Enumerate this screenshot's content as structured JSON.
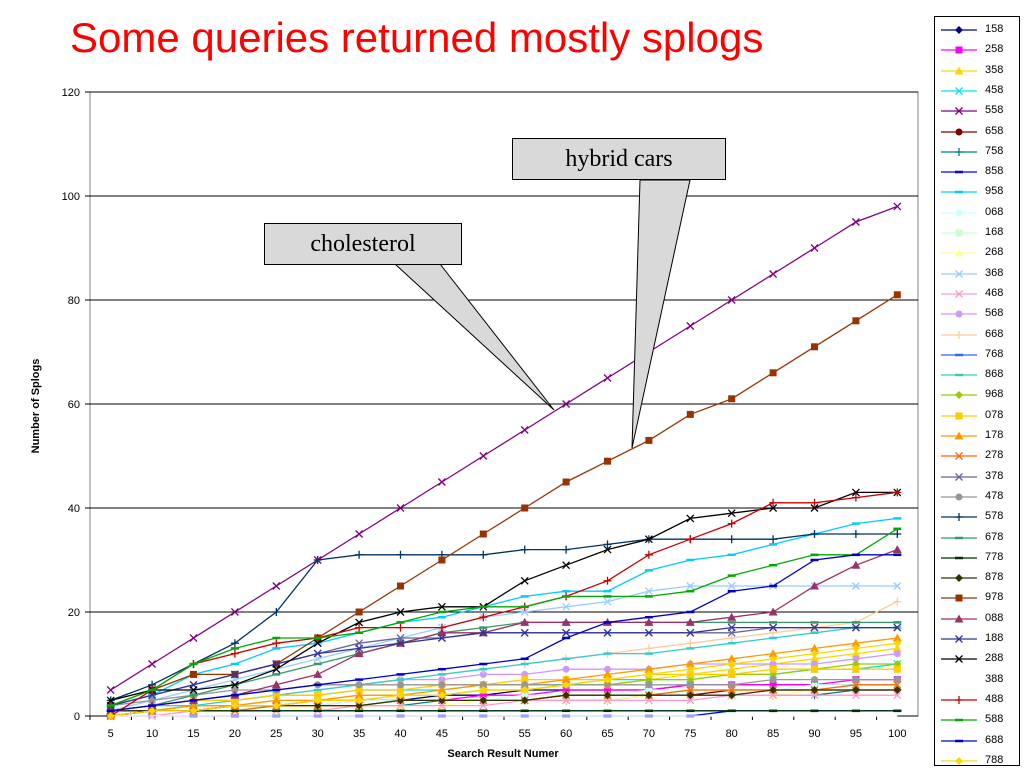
{
  "slide": {
    "title": "Some queries returned mostly splogs"
  },
  "callouts": {
    "cholesterol": "cholesterol",
    "hybrid": "hybrid cars"
  },
  "chart_data": {
    "type": "line",
    "title": "",
    "xlabel": "Search Result Numer",
    "ylabel": "Number of Splogs",
    "x": [
      5,
      10,
      15,
      20,
      25,
      30,
      35,
      40,
      45,
      50,
      55,
      60,
      65,
      70,
      75,
      80,
      85,
      90,
      95,
      100
    ],
    "xlim": [
      5,
      100
    ],
    "ylim": [
      0,
      120
    ],
    "yticks": [
      0,
      20,
      40,
      60,
      80,
      100,
      120
    ],
    "grid": "horizontal",
    "legend_position": "right",
    "series": [
      {
        "name": "158",
        "color": "#000080",
        "marker": "diamond",
        "values": [
          1,
          1,
          2,
          2,
          2,
          3,
          3,
          3,
          4,
          4,
          5,
          5,
          5,
          5,
          6,
          6,
          6,
          6,
          6,
          6
        ]
      },
      {
        "name": "258",
        "color": "#ff00ff",
        "marker": "square",
        "values": [
          0,
          1,
          1,
          2,
          2,
          2,
          3,
          3,
          3,
          4,
          4,
          5,
          5,
          5,
          6,
          6,
          6,
          6,
          7,
          7
        ]
      },
      {
        "name": "358",
        "color": "#ffd700",
        "marker": "triangle",
        "values": [
          1,
          1,
          2,
          2,
          3,
          3,
          4,
          4,
          4,
          5,
          5,
          6,
          6,
          7,
          8,
          9,
          10,
          11,
          12,
          13
        ]
      },
      {
        "name": "458",
        "color": "#00e5ee",
        "marker": "x",
        "values": [
          1,
          2,
          3,
          3,
          4,
          4,
          5,
          5,
          5,
          6,
          6,
          6,
          7,
          7,
          7,
          8,
          8,
          9,
          9,
          10
        ]
      },
      {
        "name": "558",
        "color": "#800080",
        "marker": "x",
        "values": [
          5,
          10,
          15,
          20,
          25,
          30,
          35,
          40,
          45,
          50,
          55,
          60,
          65,
          70,
          75,
          80,
          85,
          90,
          95,
          98
        ]
      },
      {
        "name": "658",
        "color": "#800000",
        "marker": "dot",
        "values": [
          1,
          1,
          1,
          2,
          2,
          2,
          2,
          3,
          3,
          3,
          3,
          4,
          4,
          4,
          4,
          5,
          5,
          5,
          5,
          5
        ]
      },
      {
        "name": "758",
        "color": "#008080",
        "marker": "plus",
        "values": [
          0,
          1,
          1,
          1,
          2,
          2,
          2,
          2,
          3,
          3,
          3,
          3,
          3,
          4,
          4,
          4,
          4,
          4,
          5,
          5
        ]
      },
      {
        "name": "858",
        "color": "#0000ff",
        "marker": "dash",
        "values": [
          0,
          0,
          0,
          0,
          0,
          0,
          0,
          0,
          0,
          0,
          0,
          0,
          0,
          0,
          0,
          1,
          1,
          1,
          1,
          1
        ]
      },
      {
        "name": "958",
        "color": "#00ccff",
        "marker": "dash",
        "values": [
          2,
          4,
          8,
          10,
          13,
          14,
          16,
          18,
          19,
          21,
          23,
          24,
          24,
          28,
          30,
          31,
          33,
          35,
          37,
          38
        ]
      },
      {
        "name": "068",
        "color": "#ccffff",
        "marker": "dot",
        "values": [
          0,
          1,
          1,
          2,
          2,
          2,
          3,
          3,
          3,
          3,
          4,
          4,
          4,
          5,
          5,
          5,
          5,
          6,
          6,
          6
        ]
      },
      {
        "name": "168",
        "color": "#ccffcc",
        "marker": "square",
        "values": [
          0,
          1,
          1,
          1,
          2,
          2,
          2,
          3,
          3,
          3,
          3,
          4,
          4,
          4,
          5,
          5,
          5,
          5,
          6,
          6
        ]
      },
      {
        "name": "268",
        "color": "#ffff99",
        "marker": "triangle",
        "values": [
          0,
          1,
          1,
          1,
          1,
          2,
          2,
          2,
          2,
          3,
          3,
          3,
          3,
          4,
          4,
          4,
          4,
          5,
          5,
          5
        ]
      },
      {
        "name": "368",
        "color": "#99ccff",
        "marker": "x",
        "values": [
          1,
          3,
          5,
          7,
          9,
          11,
          13,
          15,
          17,
          19,
          20,
          21,
          22,
          24,
          25,
          25,
          25,
          25,
          25,
          25
        ]
      },
      {
        "name": "468",
        "color": "#ff99cc",
        "marker": "x",
        "values": [
          0,
          0,
          1,
          1,
          1,
          1,
          2,
          2,
          2,
          2,
          3,
          3,
          3,
          3,
          3,
          4,
          4,
          4,
          4,
          4
        ]
      },
      {
        "name": "568",
        "color": "#cc99ff",
        "marker": "dot",
        "values": [
          1,
          2,
          3,
          4,
          5,
          6,
          6,
          7,
          7,
          8,
          8,
          9,
          9,
          9,
          10,
          10,
          10,
          10,
          11,
          12
        ]
      },
      {
        "name": "668",
        "color": "#ffcc99",
        "marker": "plus",
        "values": [
          0,
          1,
          2,
          3,
          4,
          5,
          6,
          7,
          8,
          9,
          10,
          11,
          12,
          13,
          14,
          15,
          16,
          17,
          18,
          22
        ]
      },
      {
        "name": "768",
        "color": "#3366ff",
        "marker": "dash",
        "values": [
          1,
          1,
          1,
          1,
          1,
          1,
          1,
          1,
          1,
          1,
          1,
          1,
          1,
          1,
          1,
          1,
          1,
          1,
          1,
          1
        ]
      },
      {
        "name": "868",
        "color": "#33cccc",
        "marker": "dash",
        "values": [
          1,
          2,
          2,
          3,
          4,
          5,
          6,
          7,
          8,
          9,
          10,
          11,
          12,
          12,
          13,
          14,
          15,
          16,
          17,
          17
        ]
      },
      {
        "name": "968",
        "color": "#99cc00",
        "marker": "diamond",
        "values": [
          0,
          1,
          1,
          2,
          2,
          3,
          3,
          4,
          4,
          5,
          5,
          6,
          6,
          7,
          7,
          8,
          8,
          9,
          10,
          10
        ]
      },
      {
        "name": "078",
        "color": "#ffcc00",
        "marker": "square",
        "values": [
          1,
          2,
          3,
          3,
          4,
          4,
          5,
          5,
          6,
          6,
          7,
          7,
          7,
          8,
          8,
          8,
          9,
          9,
          9,
          9
        ]
      },
      {
        "name": "178",
        "color": "#ff9900",
        "marker": "triangle",
        "values": [
          0,
          1,
          2,
          2,
          3,
          3,
          4,
          4,
          5,
          6,
          6,
          7,
          8,
          9,
          10,
          11,
          12,
          13,
          14,
          15
        ]
      },
      {
        "name": "278",
        "color": "#ff6600",
        "marker": "x",
        "values": [
          0,
          1,
          1,
          1,
          2,
          2,
          2,
          3,
          3,
          3,
          3,
          4,
          4,
          4,
          5,
          5,
          5,
          5,
          6,
          6
        ]
      },
      {
        "name": "378",
        "color": "#666699",
        "marker": "x",
        "values": [
          2,
          4,
          6,
          8,
          10,
          12,
          14,
          15,
          15,
          16,
          16,
          16,
          16,
          16,
          16,
          16,
          17,
          17,
          17,
          17
        ]
      },
      {
        "name": "478",
        "color": "#969696",
        "marker": "dot",
        "values": [
          2,
          3,
          4,
          5,
          5,
          6,
          6,
          6,
          6,
          6,
          6,
          6,
          6,
          6,
          6,
          6,
          7,
          7,
          7,
          7
        ]
      },
      {
        "name": "578",
        "color": "#003366",
        "marker": "plus",
        "values": [
          3,
          6,
          10,
          14,
          20,
          30,
          31,
          31,
          31,
          31,
          32,
          32,
          33,
          34,
          34,
          34,
          34,
          35,
          35,
          35
        ]
      },
      {
        "name": "678",
        "color": "#339966",
        "marker": "dash",
        "values": [
          1,
          2,
          4,
          6,
          8,
          10,
          12,
          14,
          16,
          17,
          18,
          18,
          18,
          18,
          18,
          18,
          18,
          18,
          18,
          18
        ]
      },
      {
        "name": "778",
        "color": "#003300",
        "marker": "dash",
        "values": [
          0,
          1,
          1,
          1,
          1,
          1,
          1,
          1,
          1,
          1,
          1,
          1,
          1,
          1,
          1,
          1,
          1,
          1,
          1,
          1
        ]
      },
      {
        "name": "878",
        "color": "#333300",
        "marker": "diamond",
        "values": [
          1,
          1,
          1,
          2,
          2,
          2,
          2,
          3,
          3,
          3,
          3,
          4,
          4,
          4,
          4,
          4,
          5,
          5,
          5,
          5
        ]
      },
      {
        "name": "978",
        "color": "#993300",
        "marker": "square",
        "values": [
          2,
          5,
          8,
          8,
          10,
          15,
          20,
          25,
          30,
          35,
          40,
          45,
          49,
          53,
          58,
          61,
          66,
          71,
          76,
          81
        ]
      },
      {
        "name": "088",
        "color": "#993366",
        "marker": "triangle",
        "values": [
          1,
          2,
          3,
          4,
          6,
          8,
          12,
          14,
          16,
          16,
          18,
          18,
          18,
          18,
          18,
          19,
          20,
          25,
          29,
          32
        ]
      },
      {
        "name": "188",
        "color": "#333399",
        "marker": "x",
        "values": [
          2,
          4,
          6,
          8,
          10,
          12,
          13,
          14,
          15,
          16,
          16,
          16,
          16,
          16,
          16,
          17,
          17,
          17,
          17,
          17
        ]
      },
      {
        "name": "288",
        "color": "#000000",
        "marker": "x",
        "values": [
          3,
          5,
          5,
          6,
          9,
          14,
          18,
          20,
          21,
          21,
          26,
          29,
          32,
          34,
          38,
          39,
          40,
          40,
          43,
          43
        ]
      },
      {
        "name": "388",
        "color": "#ffffff",
        "marker": "none",
        "values": [
          0,
          0,
          0,
          0,
          0,
          0,
          0,
          0,
          0,
          0,
          0,
          0,
          0,
          0,
          0,
          0,
          0,
          0,
          0,
          0
        ]
      },
      {
        "name": "488",
        "color": "#cc0000",
        "marker": "plus",
        "values": [
          0,
          5,
          10,
          12,
          14,
          15,
          17,
          17,
          17,
          19,
          21,
          23,
          26,
          31,
          34,
          37,
          41,
          41,
          42,
          43
        ]
      },
      {
        "name": "588",
        "color": "#00aa00",
        "marker": "dash",
        "values": [
          2,
          5,
          10,
          13,
          15,
          15,
          16,
          18,
          20,
          21,
          21,
          23,
          23,
          23,
          24,
          27,
          29,
          31,
          31,
          36
        ]
      },
      {
        "name": "688",
        "color": "#0000cc",
        "marker": "dash",
        "values": [
          1,
          2,
          3,
          4,
          5,
          6,
          7,
          8,
          9,
          10,
          11,
          15,
          18,
          19,
          20,
          24,
          25,
          30,
          31,
          31
        ]
      },
      {
        "name": "788",
        "color": "#ffd700",
        "marker": "diamond",
        "values": [
          0,
          1,
          1,
          2,
          2,
          3,
          3,
          4,
          4,
          5,
          5,
          6,
          7,
          8,
          9,
          10,
          11,
          12,
          13,
          14
        ]
      }
    ]
  }
}
